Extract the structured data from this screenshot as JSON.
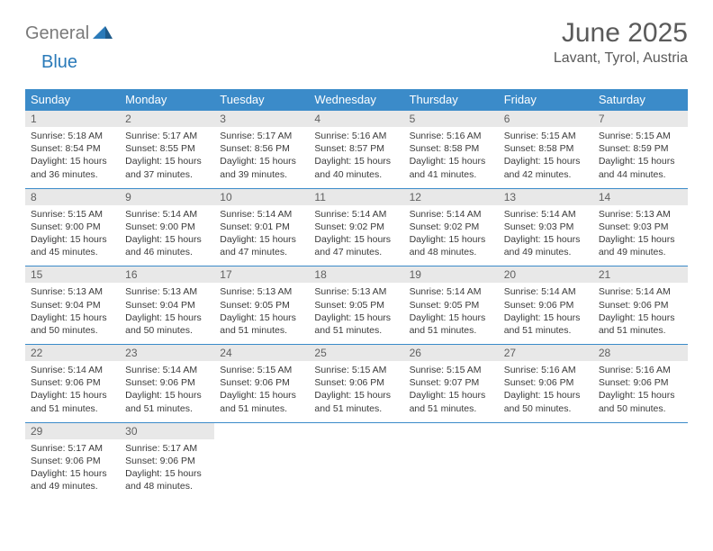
{
  "logo": {
    "gray": "General",
    "blue": "Blue"
  },
  "title": "June 2025",
  "location": "Lavant, Tyrol, Austria",
  "colors": {
    "header_bg": "#3b8bc9",
    "header_fg": "#ffffff",
    "daynum_bg": "#e8e8e8",
    "daynum_fg": "#606060",
    "text": "#3a3a3a",
    "title_fg": "#5a5a5a",
    "logo_gray": "#7a7a7a",
    "logo_blue": "#2a7ab9"
  },
  "dayNames": [
    "Sunday",
    "Monday",
    "Tuesday",
    "Wednesday",
    "Thursday",
    "Friday",
    "Saturday"
  ],
  "weeks": [
    [
      {
        "n": "1",
        "sr": "5:18 AM",
        "ss": "8:54 PM",
        "dl": "15 hours and 36 minutes."
      },
      {
        "n": "2",
        "sr": "5:17 AM",
        "ss": "8:55 PM",
        "dl": "15 hours and 37 minutes."
      },
      {
        "n": "3",
        "sr": "5:17 AM",
        "ss": "8:56 PM",
        "dl": "15 hours and 39 minutes."
      },
      {
        "n": "4",
        "sr": "5:16 AM",
        "ss": "8:57 PM",
        "dl": "15 hours and 40 minutes."
      },
      {
        "n": "5",
        "sr": "5:16 AM",
        "ss": "8:58 PM",
        "dl": "15 hours and 41 minutes."
      },
      {
        "n": "6",
        "sr": "5:15 AM",
        "ss": "8:58 PM",
        "dl": "15 hours and 42 minutes."
      },
      {
        "n": "7",
        "sr": "5:15 AM",
        "ss": "8:59 PM",
        "dl": "15 hours and 44 minutes."
      }
    ],
    [
      {
        "n": "8",
        "sr": "5:15 AM",
        "ss": "9:00 PM",
        "dl": "15 hours and 45 minutes."
      },
      {
        "n": "9",
        "sr": "5:14 AM",
        "ss": "9:00 PM",
        "dl": "15 hours and 46 minutes."
      },
      {
        "n": "10",
        "sr": "5:14 AM",
        "ss": "9:01 PM",
        "dl": "15 hours and 47 minutes."
      },
      {
        "n": "11",
        "sr": "5:14 AM",
        "ss": "9:02 PM",
        "dl": "15 hours and 47 minutes."
      },
      {
        "n": "12",
        "sr": "5:14 AM",
        "ss": "9:02 PM",
        "dl": "15 hours and 48 minutes."
      },
      {
        "n": "13",
        "sr": "5:14 AM",
        "ss": "9:03 PM",
        "dl": "15 hours and 49 minutes."
      },
      {
        "n": "14",
        "sr": "5:13 AM",
        "ss": "9:03 PM",
        "dl": "15 hours and 49 minutes."
      }
    ],
    [
      {
        "n": "15",
        "sr": "5:13 AM",
        "ss": "9:04 PM",
        "dl": "15 hours and 50 minutes."
      },
      {
        "n": "16",
        "sr": "5:13 AM",
        "ss": "9:04 PM",
        "dl": "15 hours and 50 minutes."
      },
      {
        "n": "17",
        "sr": "5:13 AM",
        "ss": "9:05 PM",
        "dl": "15 hours and 51 minutes."
      },
      {
        "n": "18",
        "sr": "5:13 AM",
        "ss": "9:05 PM",
        "dl": "15 hours and 51 minutes."
      },
      {
        "n": "19",
        "sr": "5:14 AM",
        "ss": "9:05 PM",
        "dl": "15 hours and 51 minutes."
      },
      {
        "n": "20",
        "sr": "5:14 AM",
        "ss": "9:06 PM",
        "dl": "15 hours and 51 minutes."
      },
      {
        "n": "21",
        "sr": "5:14 AM",
        "ss": "9:06 PM",
        "dl": "15 hours and 51 minutes."
      }
    ],
    [
      {
        "n": "22",
        "sr": "5:14 AM",
        "ss": "9:06 PM",
        "dl": "15 hours and 51 minutes."
      },
      {
        "n": "23",
        "sr": "5:14 AM",
        "ss": "9:06 PM",
        "dl": "15 hours and 51 minutes."
      },
      {
        "n": "24",
        "sr": "5:15 AM",
        "ss": "9:06 PM",
        "dl": "15 hours and 51 minutes."
      },
      {
        "n": "25",
        "sr": "5:15 AM",
        "ss": "9:06 PM",
        "dl": "15 hours and 51 minutes."
      },
      {
        "n": "26",
        "sr": "5:15 AM",
        "ss": "9:07 PM",
        "dl": "15 hours and 51 minutes."
      },
      {
        "n": "27",
        "sr": "5:16 AM",
        "ss": "9:06 PM",
        "dl": "15 hours and 50 minutes."
      },
      {
        "n": "28",
        "sr": "5:16 AM",
        "ss": "9:06 PM",
        "dl": "15 hours and 50 minutes."
      }
    ],
    [
      {
        "n": "29",
        "sr": "5:17 AM",
        "ss": "9:06 PM",
        "dl": "15 hours and 49 minutes."
      },
      {
        "n": "30",
        "sr": "5:17 AM",
        "ss": "9:06 PM",
        "dl": "15 hours and 48 minutes."
      },
      null,
      null,
      null,
      null,
      null
    ]
  ],
  "labels": {
    "sunrise": "Sunrise:",
    "sunset": "Sunset:",
    "daylight": "Daylight:"
  }
}
